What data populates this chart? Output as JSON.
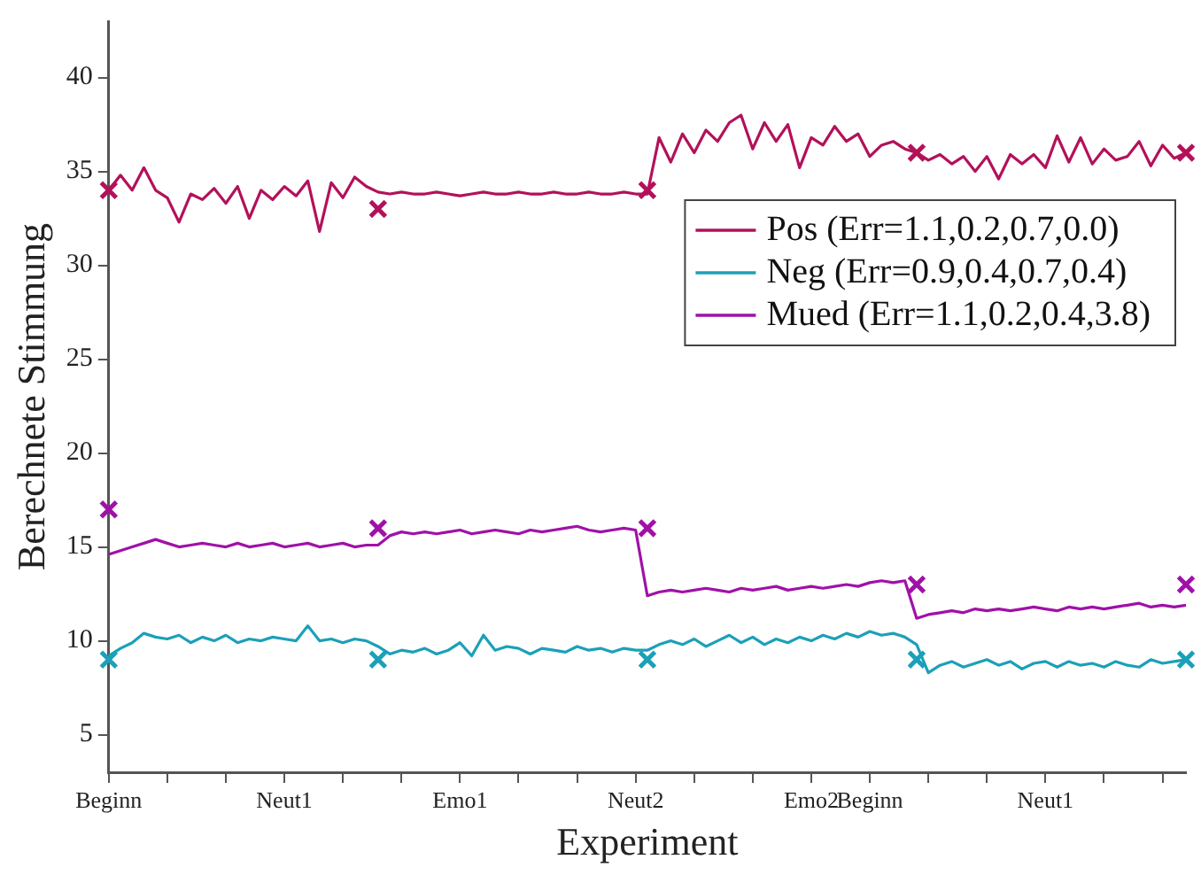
{
  "chart_data": {
    "type": "line",
    "xlabel": "Experiment",
    "ylabel": "Berechnete Stimmung",
    "categories": [
      "Beginn",
      null,
      null,
      null,
      null,
      null,
      null,
      null,
      null,
      null,
      null,
      null,
      null,
      null,
      null,
      "Neut1",
      null,
      null,
      null,
      null,
      null,
      null,
      null,
      null,
      null,
      null,
      null,
      null,
      null,
      null,
      "Emo1",
      null,
      null,
      null,
      null,
      null,
      null,
      null,
      null,
      null,
      null,
      null,
      null,
      null,
      null,
      "Neut2",
      null,
      null,
      null,
      null,
      null,
      null,
      null,
      null,
      null,
      null,
      null,
      null,
      null,
      null,
      "Emo2",
      null,
      null,
      null,
      null,
      "Beginn",
      null,
      null,
      null,
      null,
      null,
      null,
      null,
      null,
      null,
      null,
      null,
      null,
      null,
      null,
      "Neut1",
      null,
      null,
      null,
      null,
      null,
      null,
      null,
      null,
      null,
      null,
      null,
      null
    ],
    "ylim": [
      3,
      43
    ],
    "yticks": [
      5,
      10,
      15,
      20,
      25,
      30,
      35,
      40
    ],
    "grid": false,
    "legend": "right",
    "marker": "none",
    "line_style": "solid",
    "series": [
      {
        "name": "Pos (Err=1.1,0.2,0.7,0.0)",
        "color": "#b3115a",
        "values": [
          34,
          34.8,
          34,
          35.2,
          34,
          33.6,
          32.3,
          33.8,
          33.5,
          34.1,
          33.3,
          34.2,
          32.5,
          34,
          33.5,
          34.2,
          33.7,
          34.5,
          31.8,
          34.4,
          33.6,
          34.7,
          34.2,
          33.9,
          33.8,
          33.9,
          33.8,
          33.8,
          33.9,
          33.8,
          33.7,
          33.8,
          33.9,
          33.8,
          33.8,
          33.9,
          33.8,
          33.8,
          33.9,
          33.8,
          33.8,
          33.9,
          33.8,
          33.8,
          33.9,
          33.8,
          33.8,
          36.8,
          35.5,
          37,
          36,
          37.2,
          36.6,
          37.6,
          38,
          36.2,
          37.6,
          36.6,
          37.5,
          35.2,
          36.8,
          36.4,
          37.4,
          36.6,
          37,
          35.8,
          36.4,
          36.6,
          36.2,
          36,
          35.6,
          35.9,
          35.4,
          35.8,
          35,
          35.8,
          34.6,
          35.9,
          35.4,
          35.9,
          35.2,
          36.9,
          35.5,
          36.8,
          35.4,
          36.2,
          35.6,
          35.8,
          36.6,
          35.3,
          36.4,
          35.7,
          36
        ]
      },
      {
        "name": "Neg (Err=0.9,0.4,0.7,0.4)",
        "color": "#1ba0b8",
        "values": [
          9.2,
          9.6,
          9.9,
          10.4,
          10.2,
          10.1,
          10.3,
          9.9,
          10.2,
          10,
          10.3,
          9.9,
          10.1,
          10,
          10.2,
          10.1,
          10,
          10.8,
          10,
          10.1,
          9.9,
          10.1,
          10,
          9.7,
          9.3,
          9.5,
          9.4,
          9.6,
          9.3,
          9.5,
          9.9,
          9.2,
          10.3,
          9.5,
          9.7,
          9.6,
          9.3,
          9.6,
          9.5,
          9.4,
          9.7,
          9.5,
          9.6,
          9.4,
          9.6,
          9.5,
          9.5,
          9.8,
          10,
          9.8,
          10.1,
          9.7,
          10,
          10.3,
          9.9,
          10.2,
          9.8,
          10.1,
          9.9,
          10.2,
          10,
          10.3,
          10.1,
          10.4,
          10.2,
          10.5,
          10.3,
          10.4,
          10.2,
          9.8,
          8.3,
          8.7,
          8.9,
          8.6,
          8.8,
          9,
          8.7,
          8.9,
          8.5,
          8.8,
          8.9,
          8.6,
          8.9,
          8.7,
          8.8,
          8.6,
          8.9,
          8.7,
          8.6,
          9,
          8.8,
          8.9,
          9
        ]
      },
      {
        "name": "Mued (Err=1.1,0.2,0.4,3.8)",
        "color": "#a011a8",
        "values": [
          14.6,
          14.8,
          15,
          15.2,
          15.4,
          15.2,
          15,
          15.1,
          15.2,
          15.1,
          15,
          15.2,
          15,
          15.1,
          15.2,
          15,
          15.1,
          15.2,
          15,
          15.1,
          15.2,
          15,
          15.1,
          15.1,
          15.6,
          15.8,
          15.7,
          15.8,
          15.7,
          15.8,
          15.9,
          15.7,
          15.8,
          15.9,
          15.8,
          15.7,
          15.9,
          15.8,
          15.9,
          16,
          16.1,
          15.9,
          15.8,
          15.9,
          16,
          15.9,
          12.4,
          12.6,
          12.7,
          12.6,
          12.7,
          12.8,
          12.7,
          12.6,
          12.8,
          12.7,
          12.8,
          12.9,
          12.7,
          12.8,
          12.9,
          12.8,
          12.9,
          13,
          12.9,
          13.1,
          13.2,
          13.1,
          13.2,
          11.2,
          11.4,
          11.5,
          11.6,
          11.5,
          11.7,
          11.6,
          11.7,
          11.6,
          11.7,
          11.8,
          11.7,
          11.6,
          11.8,
          11.7,
          11.8,
          11.7,
          11.8,
          11.9,
          12,
          11.8,
          11.9,
          11.8,
          11.9
        ]
      },
      {
        "color": "#b3115a",
        "type": "scatter",
        "marker": "cross",
        "values": [
          34,
          null,
          null,
          null,
          null,
          null,
          null,
          null,
          null,
          null,
          null,
          null,
          null,
          null,
          null,
          null,
          null,
          null,
          null,
          null,
          null,
          null,
          null,
          33,
          null,
          null,
          null,
          null,
          null,
          null,
          null,
          null,
          null,
          null,
          null,
          null,
          null,
          null,
          null,
          null,
          null,
          null,
          null,
          null,
          null,
          null,
          34,
          null,
          null,
          null,
          null,
          null,
          null,
          null,
          null,
          null,
          null,
          null,
          null,
          null,
          null,
          null,
          null,
          null,
          null,
          null,
          null,
          null,
          null,
          36,
          null,
          null,
          null,
          null,
          null,
          null,
          null,
          null,
          null,
          null,
          null,
          null,
          null,
          null,
          null,
          null,
          null,
          null,
          null,
          null,
          null,
          null,
          36
        ]
      },
      {
        "color": "#1ba0b8",
        "type": "scatter",
        "marker": "cross",
        "values": [
          9,
          null,
          null,
          null,
          null,
          null,
          null,
          null,
          null,
          null,
          null,
          null,
          null,
          null,
          null,
          null,
          null,
          null,
          null,
          null,
          null,
          null,
          null,
          9,
          null,
          null,
          null,
          null,
          null,
          null,
          null,
          null,
          null,
          null,
          null,
          null,
          null,
          null,
          null,
          null,
          null,
          null,
          null,
          null,
          null,
          null,
          9,
          null,
          null,
          null,
          null,
          null,
          null,
          null,
          null,
          null,
          null,
          null,
          null,
          null,
          null,
          null,
          null,
          null,
          null,
          null,
          null,
          null,
          null,
          9,
          null,
          null,
          null,
          null,
          null,
          null,
          null,
          null,
          null,
          null,
          null,
          null,
          null,
          null,
          null,
          null,
          null,
          null,
          null,
          null,
          null,
          null,
          9
        ]
      },
      {
        "color": "#a011a8",
        "type": "scatter",
        "marker": "cross",
        "values": [
          17,
          null,
          null,
          null,
          null,
          null,
          null,
          null,
          null,
          null,
          null,
          null,
          null,
          null,
          null,
          null,
          null,
          null,
          null,
          null,
          null,
          null,
          null,
          16,
          null,
          null,
          null,
          null,
          null,
          null,
          null,
          null,
          null,
          null,
          null,
          null,
          null,
          null,
          null,
          null,
          null,
          null,
          null,
          null,
          null,
          null,
          16,
          null,
          null,
          null,
          null,
          null,
          null,
          null,
          null,
          null,
          null,
          null,
          null,
          null,
          null,
          null,
          null,
          null,
          null,
          null,
          null,
          null,
          null,
          13,
          null,
          null,
          null,
          null,
          null,
          null,
          null,
          null,
          null,
          null,
          null,
          null,
          null,
          null,
          null,
          null,
          null,
          null,
          null,
          null,
          null,
          null,
          13
        ]
      }
    ]
  }
}
